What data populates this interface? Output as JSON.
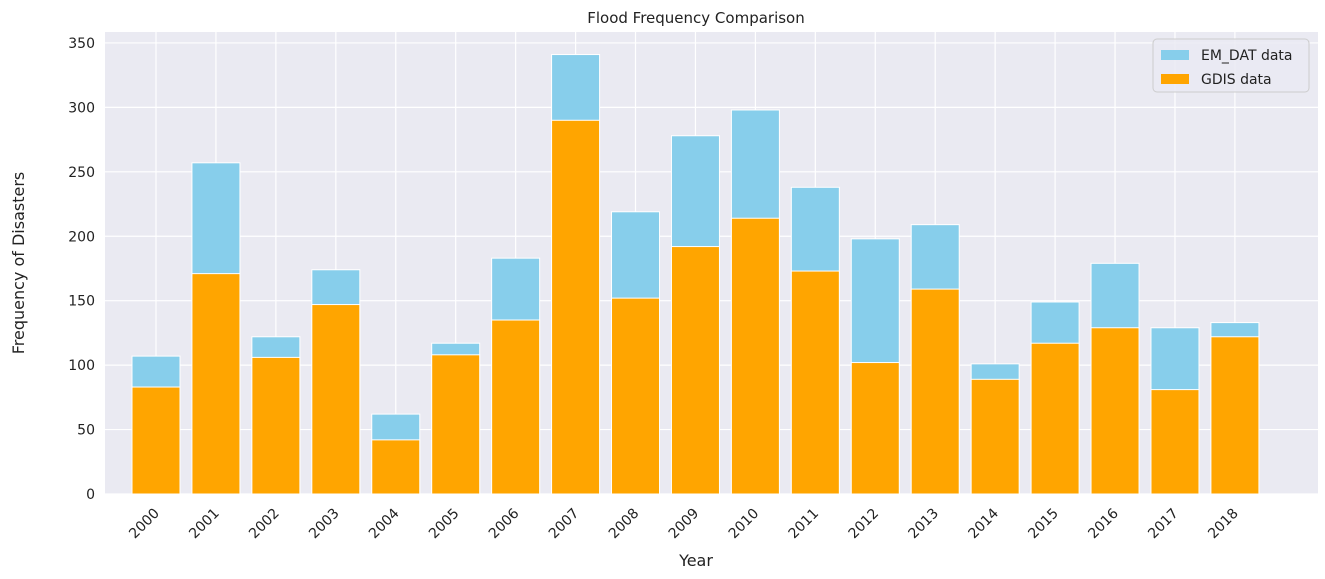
{
  "chart_data": {
    "type": "bar",
    "title": "Flood Frequency Comparison",
    "x_label": "Year",
    "y_label": "Frequency of Disasters",
    "categories": [
      "2000",
      "2001",
      "2002",
      "2003",
      "2004",
      "2005",
      "2006",
      "2007",
      "2008",
      "2009",
      "2010",
      "2011",
      "2012",
      "2013",
      "2014",
      "2015",
      "2016",
      "2017",
      "2018"
    ],
    "series": [
      {
        "name": "EM_DAT data",
        "color": "#87ceeb",
        "values": [
          107,
          257,
          122,
          174,
          62,
          117,
          183,
          341,
          219,
          278,
          298,
          238,
          198,
          209,
          101,
          149,
          179,
          129,
          133
        ]
      },
      {
        "name": "GDIS data",
        "color": "#ffa500",
        "values": [
          83,
          171,
          106,
          147,
          42,
          108,
          135,
          290,
          152,
          192,
          214,
          173,
          102,
          159,
          89,
          117,
          129,
          81,
          122
        ]
      }
    ],
    "ylim": [
      0,
      358.5
    ],
    "yticks": [
      0,
      50,
      100,
      150,
      200,
      250,
      300,
      350
    ],
    "grid": true,
    "legend": "upper right"
  }
}
